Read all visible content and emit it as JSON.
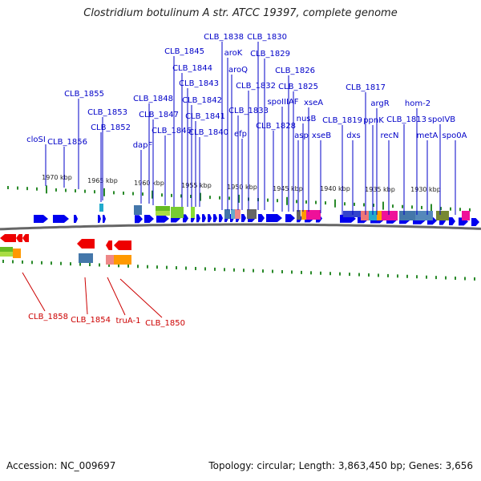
{
  "title": "Clostridium botulinum A str. ATCC 19397, complete genome",
  "footer": {
    "accession": "Accession: NC_009697",
    "summary": "Topology: circular; Length: 3,863,450 bp; Genes: 3,656"
  },
  "colors": {
    "forward_label": "#0000c8",
    "reverse_label": "#cc0000",
    "forward_gene": "#0000ee",
    "reverse_gene": "#ee0000",
    "backbone": "#666666",
    "tick": "#2a8a2a"
  },
  "scale_labels": [
    "1970 kbp",
    "1965 kbp",
    "1960 kbp",
    "1955 kbp",
    "1950 kbp",
    "1945 kbp",
    "1940 kbp",
    "1935 kbp",
    "1930 kbp"
  ],
  "forward_genes": [
    {
      "label": "cloSI"
    },
    {
      "label": "CLB_1855"
    },
    {
      "label": "CLB_1856"
    },
    {
      "label": "CLB_1853"
    },
    {
      "label": "CLB_1852"
    },
    {
      "label": "dapF"
    },
    {
      "label": "CLB_1848"
    },
    {
      "label": "CLB_1847"
    },
    {
      "label": "CLB_1846"
    },
    {
      "label": "CLB_1845"
    },
    {
      "label": "CLB_1844"
    },
    {
      "label": "CLB_1843"
    },
    {
      "label": "CLB_1842"
    },
    {
      "label": "CLB_1841"
    },
    {
      "label": "CLB_1840"
    },
    {
      "label": "CLB_1838"
    },
    {
      "label": "aroK"
    },
    {
      "label": "aroQ"
    },
    {
      "label": "CLB_1833"
    },
    {
      "label": "efp"
    },
    {
      "label": "CLB_1832"
    },
    {
      "label": "CLB_1830"
    },
    {
      "label": "CLB_1829"
    },
    {
      "label": "CLB_1828"
    },
    {
      "label": "spoIIIAF"
    },
    {
      "label": "CLB_1826"
    },
    {
      "label": "CLB_1825"
    },
    {
      "label": "asp"
    },
    {
      "label": "nusB"
    },
    {
      "label": "xseA"
    },
    {
      "label": "xseB"
    },
    {
      "label": "CLB_1819"
    },
    {
      "label": "dxs"
    },
    {
      "label": "CLB_1817"
    },
    {
      "label": "ppnK"
    },
    {
      "label": "argR"
    },
    {
      "label": "recN"
    },
    {
      "label": "CLB_1813"
    },
    {
      "label": "hom-2"
    },
    {
      "label": "metA"
    },
    {
      "label": "spoIVB"
    },
    {
      "label": "spo0A"
    }
  ],
  "reverse_genes": [
    {
      "label": "CLB_1858"
    },
    {
      "label": "CLB_1854"
    },
    {
      "label": "truA-1"
    },
    {
      "label": "CLB_1850"
    }
  ]
}
